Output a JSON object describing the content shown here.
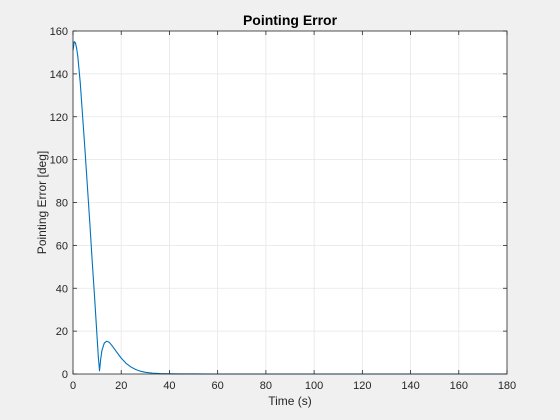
{
  "chart_data": {
    "type": "line",
    "title": "Pointing Error",
    "xlabel": "Time (s)",
    "ylabel": "Pointing Error [deg]",
    "xlim": [
      0,
      180
    ],
    "ylim": [
      0,
      160
    ],
    "xticks": [
      0,
      20,
      40,
      60,
      80,
      100,
      120,
      140,
      160,
      180
    ],
    "yticks": [
      0,
      20,
      40,
      60,
      80,
      100,
      120,
      140,
      160
    ],
    "grid": true,
    "legend": "none",
    "series": [
      {
        "color": "#0072bd",
        "x": [
          0,
          0.5,
          1,
          1.5,
          2,
          3,
          4,
          5,
          6,
          7,
          8,
          9,
          10,
          10.5,
          11,
          11.5,
          12,
          13,
          14,
          15,
          16,
          17,
          18,
          20,
          22,
          24,
          26,
          28,
          30,
          33,
          36,
          40,
          45,
          50,
          60,
          70,
          80,
          100,
          120,
          140,
          160,
          180
        ],
        "y": [
          151,
          155,
          154.5,
          152,
          148,
          136,
          120,
          104,
          87,
          70,
          52,
          35,
          17,
          8,
          1.5,
          7,
          11,
          14.5,
          15.3,
          14.8,
          13.5,
          12,
          10.4,
          7.4,
          5,
          3.3,
          2.1,
          1.3,
          0.8,
          0.4,
          0.2,
          0.1,
          0.05,
          0.02,
          0,
          0,
          0,
          0,
          0,
          0,
          0,
          0
        ]
      }
    ]
  }
}
